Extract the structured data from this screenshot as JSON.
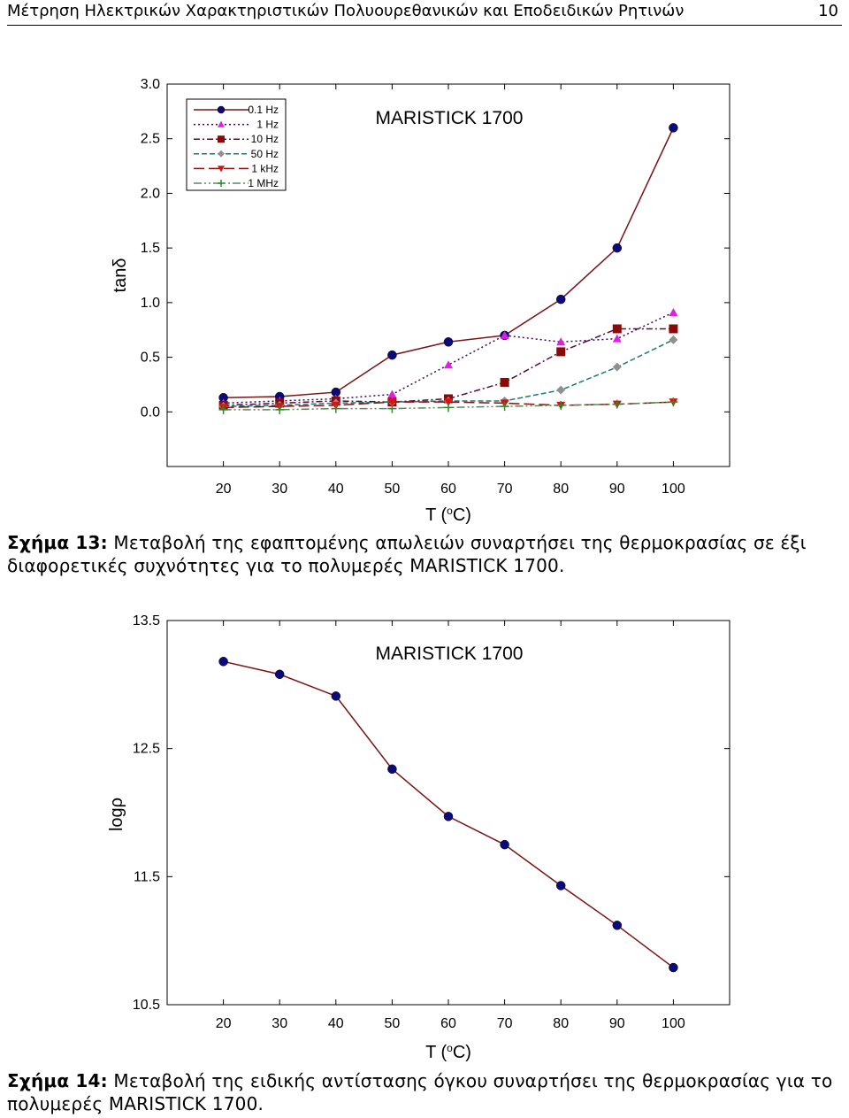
{
  "header": {
    "title": "Μέτρηση Ηλεκτρικών Χαρακτηριστικών Πολυουρεθανικών και Εποδειδικών Ρητινών",
    "page_number": "10"
  },
  "figure13": {
    "caption_label": "Σχήμα 13:",
    "caption_text": " Μεταβολή της εφαπτομένης απωλειών συναρτήσει της θερμοκρασίας σε έξι διαφορετικές συχνότητες για το πολυμερές MARISTICK 1700."
  },
  "figure14": {
    "caption_label": "Σχήμα 14:",
    "caption_text": " Μεταβολή της ειδικής αντίστασης όγκου συναρτήσει της θερμοκρασίας για το πολυμερές MARISTICK 1700."
  },
  "chart_data": [
    {
      "type": "line",
      "title": "MARISTICK 1700",
      "xlabel": "T (oC)",
      "ylabel": "tanδ",
      "xlim": [
        10,
        110
      ],
      "ylim": [
        -0.5,
        3.0
      ],
      "x_ticks": [
        "20",
        "30",
        "40",
        "50",
        "60",
        "70",
        "80",
        "90",
        "100"
      ],
      "y_ticks": [
        "0.0",
        "0.5",
        "1.0",
        "1.5",
        "2.0",
        "2.5",
        "3.0"
      ],
      "x": [
        20,
        30,
        40,
        50,
        60,
        70,
        80,
        90,
        100
      ],
      "legend_position": "top-left",
      "series": [
        {
          "name": "0.1 Hz",
          "color": "#7a1414",
          "marker": "circle",
          "marker_color": "#0a0a7a",
          "dash": "solid",
          "values": [
            0.13,
            0.14,
            0.18,
            0.52,
            0.64,
            0.7,
            1.03,
            1.5,
            2.6
          ]
        },
        {
          "name": "1 Hz",
          "color": "#3a0a5a",
          "marker": "triangle-up",
          "marker_color": "#e020e0",
          "dash": "dot",
          "values": [
            0.08,
            0.1,
            0.12,
            0.16,
            0.43,
            0.7,
            0.64,
            0.67,
            0.91
          ]
        },
        {
          "name": "10 Hz",
          "color": "#5a0a3a",
          "marker": "square",
          "marker_color": "#8a0a0a",
          "dash": "dashdot",
          "values": [
            0.06,
            0.08,
            0.1,
            0.09,
            0.12,
            0.27,
            0.55,
            0.76,
            0.76
          ]
        },
        {
          "name": "50 Hz",
          "color": "#1a7a7a",
          "marker": "diamond",
          "marker_color": "#909090",
          "dash": "dash",
          "values": [
            0.05,
            0.06,
            0.08,
            0.09,
            0.1,
            0.1,
            0.2,
            0.41,
            0.66
          ]
        },
        {
          "name": "1 kHz",
          "color": "#8a1010",
          "marker": "triangle-down",
          "marker_color": "#dd1010",
          "dash": "longdash",
          "values": [
            0.04,
            0.05,
            0.06,
            0.09,
            0.09,
            0.08,
            0.06,
            0.07,
            0.09
          ]
        },
        {
          "name": "1 MHz",
          "color": "#5a8a5a",
          "marker": "plus",
          "marker_color": "#2a8a2a",
          "dash": "dashdotdot",
          "values": [
            0.02,
            0.02,
            0.03,
            0.03,
            0.04,
            0.05,
            0.06,
            0.07,
            0.09
          ]
        }
      ]
    },
    {
      "type": "line",
      "title": "MARISTICK 1700",
      "xlabel": "T (oC)",
      "ylabel": "logρ",
      "xlim": [
        10,
        110
      ],
      "ylim": [
        10.5,
        13.5
      ],
      "x_ticks": [
        "20",
        "30",
        "40",
        "50",
        "60",
        "70",
        "80",
        "90",
        "100"
      ],
      "y_ticks": [
        "10.5",
        "11.5",
        "12.5",
        "13.5"
      ],
      "x": [
        20,
        30,
        40,
        50,
        60,
        70,
        80,
        90,
        100
      ],
      "series": [
        {
          "name": "",
          "color": "#7a1414",
          "marker": "circle",
          "marker_color": "#0a0a7a",
          "dash": "solid",
          "values": [
            13.18,
            13.08,
            12.91,
            12.34,
            11.97,
            11.75,
            11.43,
            11.12,
            10.79
          ]
        }
      ]
    }
  ]
}
